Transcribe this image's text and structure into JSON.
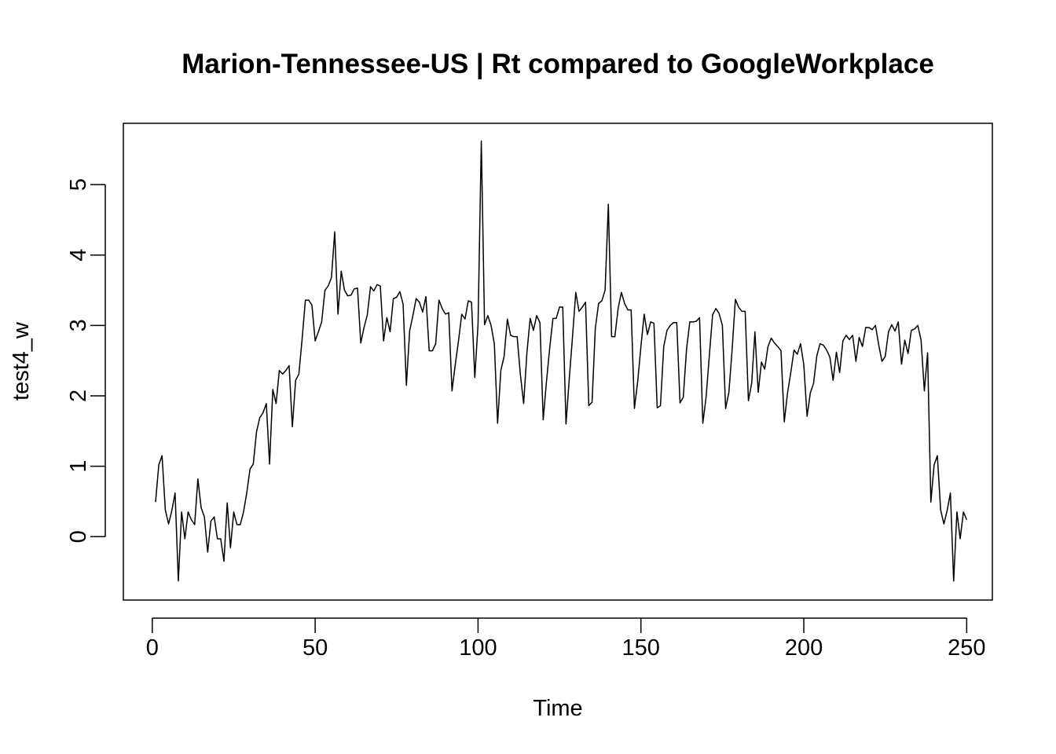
{
  "chart_data": {
    "type": "line",
    "title": "Marion-Tennessee-US | Rt compared to GoogleWorkplace",
    "xlabel": "Time",
    "ylabel": "test4_w",
    "xlim": [
      1,
      248
    ],
    "ylim": [
      -0.65,
      5.62
    ],
    "x_ticks": [
      0,
      50,
      100,
      150,
      200,
      250
    ],
    "y_ticks": [
      0,
      1,
      2,
      3,
      4,
      5
    ],
    "x_tick_labels": [
      "0",
      "50",
      "100",
      "150",
      "200",
      "250"
    ],
    "y_tick_labels": [
      "0",
      "1",
      "2",
      "3",
      "4",
      "5"
    ],
    "grid": false,
    "line_color": "#000000",
    "series": [
      {
        "x_start": 1,
        "x_step": 1,
        "values": [
          0.49,
          1.02,
          1.15,
          0.38,
          0.18,
          0.37,
          0.62,
          -0.63,
          0.35,
          -0.03,
          0.35,
          0.24,
          0.17,
          0.82,
          0.41,
          0.28,
          -0.22,
          0.22,
          0.28,
          -0.03,
          -0.03,
          -0.35,
          0.48,
          -0.16,
          0.35,
          0.17,
          0.17,
          0.35,
          0.62,
          0.96,
          1.03,
          1.49,
          1.69,
          1.76,
          1.89,
          1.03,
          2.09,
          1.89,
          2.36,
          2.31,
          2.36,
          2.43,
          1.56,
          2.22,
          2.31,
          2.81,
          3.36,
          3.36,
          3.29,
          2.78,
          2.91,
          3.05,
          3.5,
          3.56,
          3.68,
          4.33,
          3.16,
          3.77,
          3.5,
          3.42,
          3.43,
          3.52,
          3.53,
          2.75,
          2.97,
          3.15,
          3.55,
          3.49,
          3.58,
          3.56,
          2.78,
          3.11,
          2.91,
          3.38,
          3.4,
          3.48,
          3.3,
          2.15,
          2.92,
          3.14,
          3.38,
          3.33,
          3.19,
          3.41,
          2.64,
          2.64,
          2.74,
          3.36,
          3.24,
          3.16,
          3.18,
          2.07,
          2.44,
          2.78,
          3.16,
          3.09,
          3.35,
          3.33,
          2.26,
          3.01,
          5.62,
          3.01,
          3.14,
          3.0,
          2.74,
          1.61,
          2.36,
          2.56,
          3.09,
          2.86,
          2.84,
          2.84,
          2.3,
          1.89,
          2.61,
          3.1,
          2.93,
          3.14,
          3.04,
          1.66,
          2.2,
          2.68,
          3.1,
          3.1,
          3.26,
          3.26,
          1.6,
          2.24,
          2.84,
          3.47,
          3.2,
          3.26,
          3.33,
          1.86,
          1.91,
          2.96,
          3.31,
          3.35,
          3.5,
          4.72,
          2.84,
          2.84,
          3.24,
          3.47,
          3.31,
          3.22,
          3.22,
          1.82,
          2.2,
          2.7,
          3.16,
          2.87,
          3.05,
          3.03,
          1.83,
          1.86,
          2.7,
          2.93,
          3.0,
          3.04,
          3.04,
          1.9,
          1.98,
          2.66,
          3.05,
          3.05,
          3.06,
          3.11,
          1.61,
          1.98,
          2.57,
          3.15,
          3.24,
          3.17,
          3.0,
          1.82,
          2.05,
          2.66,
          3.37,
          3.26,
          3.2,
          3.2,
          1.93,
          2.18,
          2.91,
          2.05,
          2.48,
          2.38,
          2.7,
          2.82,
          2.75,
          2.7,
          2.64,
          1.63,
          2.04,
          2.33,
          2.65,
          2.59,
          2.74,
          2.44,
          1.71,
          2.04,
          2.18,
          2.57,
          2.74,
          2.72,
          2.65,
          2.55,
          2.22,
          2.62,
          2.33,
          2.78,
          2.86,
          2.8,
          2.86,
          2.49,
          2.83,
          2.7,
          2.97,
          2.97,
          2.94,
          3.0,
          2.72,
          2.49,
          2.56,
          2.91,
          3.01,
          2.92,
          3.05,
          2.45,
          2.79,
          2.6,
          2.93,
          2.95,
          3.0,
          2.79,
          2.07,
          2.61,
          0.49,
          1.02,
          1.15,
          0.38,
          0.18,
          0.37,
          0.62,
          -0.63,
          0.35,
          -0.03,
          0.35,
          0.24
        ]
      }
    ]
  }
}
